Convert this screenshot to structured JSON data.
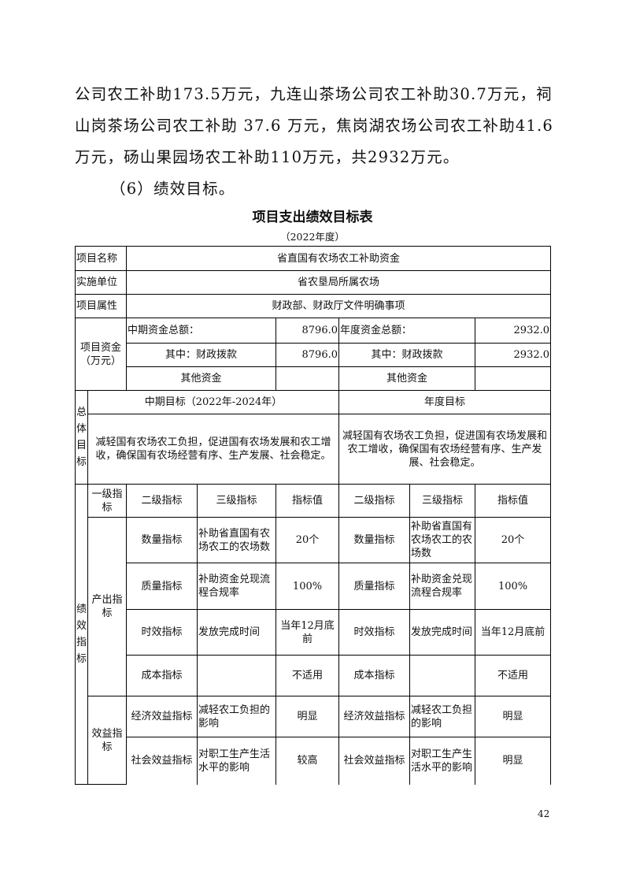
{
  "body_text": {
    "paragraph": "公司农工补助173.5万元，九连山茶场公司农工补助30.7万元，祠山岗茶场公司农工补助 37.6 万元，焦岗湖农场公司农工补助41.6万元，砀山果园场农工补助110万元，共2932万元。",
    "section_heading": "（6）绩效目标。"
  },
  "table_title": "项目支出绩效目标表",
  "table_subtitle": "（2022年度）",
  "table": {
    "project_name_label": "项目名称",
    "project_name": "省直国有农场农工补助资金",
    "unit_label": "实施单位",
    "unit": "省农垦局所属农场",
    "attribute_label": "项目属性",
    "attribute": "财政部、财政厅文件明确事项",
    "funds_label": "项目资金（万元）",
    "mid_total_label": "中期资金总额：",
    "mid_total": "8796.0",
    "year_total_label": "年度资金总额：",
    "year_total": "2932.0",
    "mid_fiscal_label": "其中：财政拨款",
    "mid_fiscal": "8796.0",
    "year_fiscal_label": "其中：财政拨款",
    "year_fiscal": "2932.0",
    "mid_other_label": "其他资金",
    "year_other_label": "其他资金",
    "overall_goal_label": "总体目标",
    "mid_goal_header": "中期目标（2022年-2024年）",
    "year_goal_header": "年度目标",
    "mid_goal_text": "减轻国有农场农工负担，促进国有农场发展和农工增收，确保国有农场经营有序、生产发展、社会稳定。",
    "year_goal_text": "减轻国有农场农工负担，促进国有农场发展和农工增收，确保国有农场经营有序、生产发展、社会稳定。",
    "perf_label": "绩效指标",
    "headers": [
      "一级指标",
      "二级指标",
      "三级指标",
      "指标值",
      "二级指标",
      "三级指标",
      "指标值"
    ],
    "output_label": "产出指标",
    "benefit_label": "效益指标",
    "rows": [
      [
        "数量指标",
        "补助省直国有农场农工的农场数",
        "20个",
        "数量指标",
        "补助省直国有农场农工的农场数",
        "20个"
      ],
      [
        "质量指标",
        "补助资金兑现流程合规率",
        "100%",
        "质量指标",
        "补助资金兑现流程合规率",
        "100%"
      ],
      [
        "时效指标",
        "发放完成时间",
        "当年12月底前",
        "时效指标",
        "发放完成时间",
        "当年12月底前"
      ],
      [
        "成本指标",
        "",
        "不适用",
        "成本指标",
        "",
        "不适用"
      ],
      [
        "经济效益指标",
        "减轻农工负担的影响",
        "明显",
        "经济效益指标",
        "减轻农工负担的影响",
        "明显"
      ],
      [
        "社会效益指标",
        "对职工生产生活水平的影响",
        "较高",
        "社会效益指标",
        "对职工生产生活水平的影响",
        "明显"
      ]
    ]
  },
  "page_number": "42"
}
